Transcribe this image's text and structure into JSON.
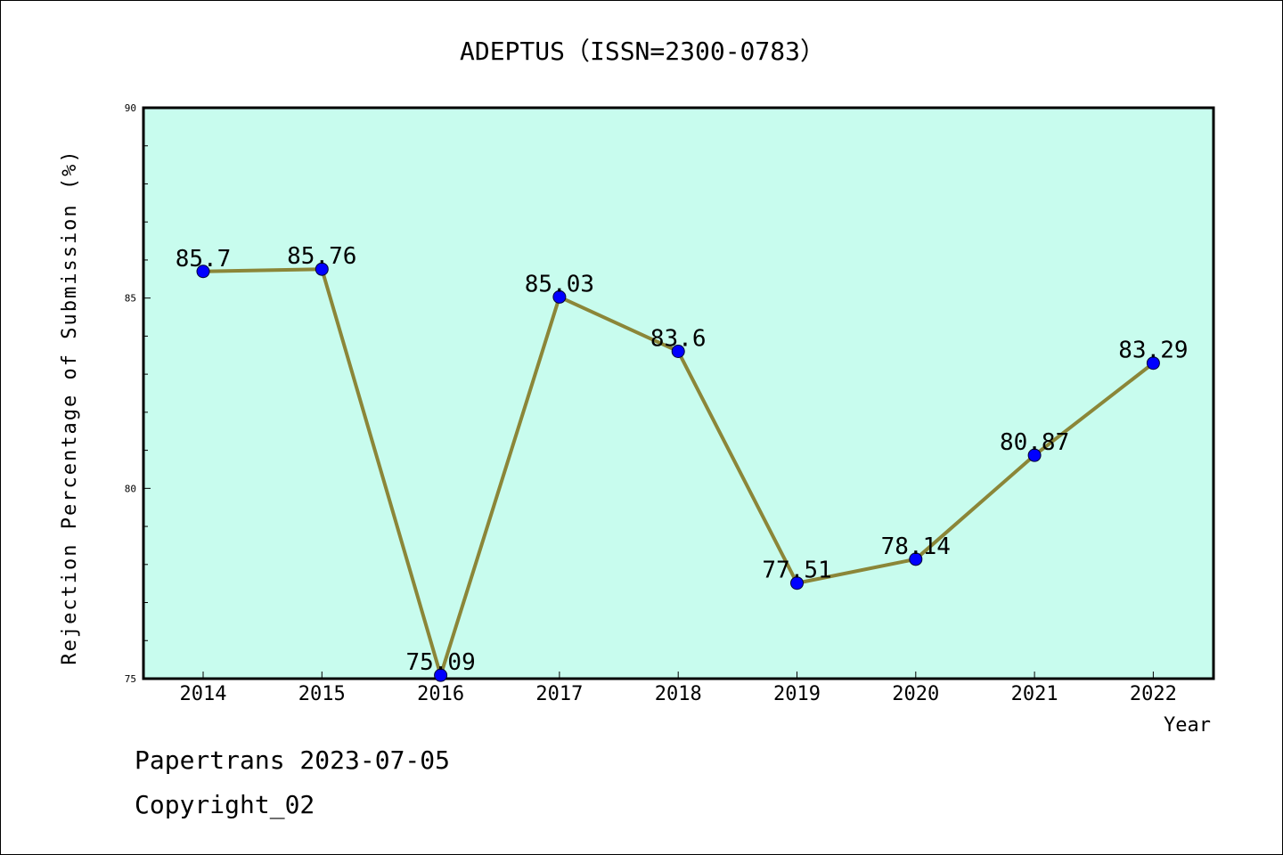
{
  "chart_data": {
    "type": "line",
    "title": "ADEPTUS（ISSN=2300-0783）",
    "xlabel": "Year",
    "ylabel": "Rejection Percentage of Submission (%)",
    "categories": [
      "2014",
      "2015",
      "2016",
      "2017",
      "2018",
      "2019",
      "2020",
      "2021",
      "2022"
    ],
    "series": [
      {
        "values": [
          85.7,
          85.76,
          75.09,
          85.03,
          83.6,
          77.51,
          78.14,
          80.87,
          83.29
        ],
        "data_labels": [
          "85.7",
          "85.76",
          "75.09",
          "85.03",
          "83.6",
          "77.51",
          "78.14",
          "80.87",
          "83.29"
        ]
      }
    ],
    "ylim": [
      75,
      90
    ],
    "yticks": [
      "75",
      "80",
      "85",
      "90"
    ],
    "grid": false,
    "colors": {
      "plot_background": "#c8fcee",
      "line": "#8b8638",
      "marker": "#0000ff"
    }
  },
  "footer": {
    "line1": "Papertrans 2023-07-05",
    "line2": "Copyright_02"
  }
}
